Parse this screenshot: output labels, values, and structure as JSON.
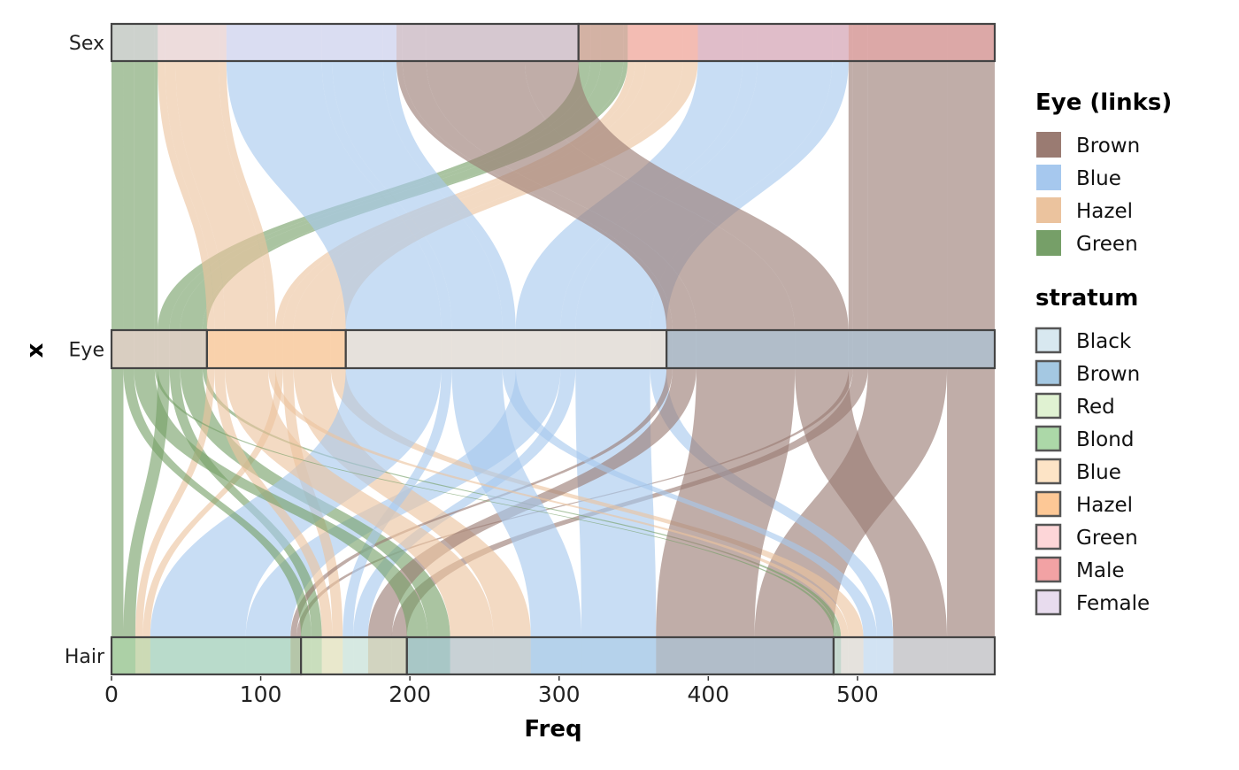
{
  "chart_data": {
    "type": "alluvial",
    "title": "",
    "xlabel": "Freq",
    "ylabel": "x",
    "xlim": [
      0,
      592
    ],
    "x_ticks": [
      "0",
      "100",
      "200",
      "300",
      "400",
      "500"
    ],
    "x_tick_values": [
      0,
      100,
      200,
      300,
      400,
      500
    ],
    "axes": [
      "Sex",
      "Eye",
      "Hair"
    ],
    "strata_order": {
      "Sex": [
        "Female",
        "Male"
      ],
      "Eye": [
        "Green",
        "Hazel",
        "Blue",
        "Brown"
      ],
      "Hair": [
        "Blond",
        "Red",
        "Brown",
        "Black"
      ]
    },
    "alluvia": [
      {
        "Hair": "Black",
        "Eye": "Brown",
        "Sex": "Male",
        "Freq": 32
      },
      {
        "Hair": "Brown",
        "Eye": "Brown",
        "Sex": "Male",
        "Freq": 53
      },
      {
        "Hair": "Red",
        "Eye": "Brown",
        "Sex": "Male",
        "Freq": 10
      },
      {
        "Hair": "Blond",
        "Eye": "Brown",
        "Sex": "Male",
        "Freq": 3
      },
      {
        "Hair": "Black",
        "Eye": "Blue",
        "Sex": "Male",
        "Freq": 11
      },
      {
        "Hair": "Brown",
        "Eye": "Blue",
        "Sex": "Male",
        "Freq": 50
      },
      {
        "Hair": "Red",
        "Eye": "Blue",
        "Sex": "Male",
        "Freq": 10
      },
      {
        "Hair": "Blond",
        "Eye": "Blue",
        "Sex": "Male",
        "Freq": 30
      },
      {
        "Hair": "Black",
        "Eye": "Hazel",
        "Sex": "Male",
        "Freq": 10
      },
      {
        "Hair": "Brown",
        "Eye": "Hazel",
        "Sex": "Male",
        "Freq": 25
      },
      {
        "Hair": "Red",
        "Eye": "Hazel",
        "Sex": "Male",
        "Freq": 7
      },
      {
        "Hair": "Blond",
        "Eye": "Hazel",
        "Sex": "Male",
        "Freq": 5
      },
      {
        "Hair": "Black",
        "Eye": "Green",
        "Sex": "Male",
        "Freq": 3
      },
      {
        "Hair": "Brown",
        "Eye": "Green",
        "Sex": "Male",
        "Freq": 15
      },
      {
        "Hair": "Red",
        "Eye": "Green",
        "Sex": "Male",
        "Freq": 7
      },
      {
        "Hair": "Blond",
        "Eye": "Green",
        "Sex": "Male",
        "Freq": 8
      },
      {
        "Hair": "Black",
        "Eye": "Brown",
        "Sex": "Female",
        "Freq": 36
      },
      {
        "Hair": "Brown",
        "Eye": "Brown",
        "Sex": "Female",
        "Freq": 66
      },
      {
        "Hair": "Red",
        "Eye": "Brown",
        "Sex": "Female",
        "Freq": 16
      },
      {
        "Hair": "Blond",
        "Eye": "Brown",
        "Sex": "Female",
        "Freq": 4
      },
      {
        "Hair": "Black",
        "Eye": "Blue",
        "Sex": "Female",
        "Freq": 9
      },
      {
        "Hair": "Brown",
        "Eye": "Blue",
        "Sex": "Female",
        "Freq": 34
      },
      {
        "Hair": "Red",
        "Eye": "Blue",
        "Sex": "Female",
        "Freq": 7
      },
      {
        "Hair": "Blond",
        "Eye": "Blue",
        "Sex": "Female",
        "Freq": 64
      },
      {
        "Hair": "Black",
        "Eye": "Hazel",
        "Sex": "Female",
        "Freq": 5
      },
      {
        "Hair": "Brown",
        "Eye": "Hazel",
        "Sex": "Female",
        "Freq": 29
      },
      {
        "Hair": "Red",
        "Eye": "Hazel",
        "Sex": "Female",
        "Freq": 7
      },
      {
        "Hair": "Blond",
        "Eye": "Hazel",
        "Sex": "Female",
        "Freq": 5
      },
      {
        "Hair": "Black",
        "Eye": "Green",
        "Sex": "Female",
        "Freq": 2
      },
      {
        "Hair": "Brown",
        "Eye": "Green",
        "Sex": "Female",
        "Freq": 14
      },
      {
        "Hair": "Red",
        "Eye": "Green",
        "Sex": "Female",
        "Freq": 7
      },
      {
        "Hair": "Blond",
        "Eye": "Green",
        "Sex": "Female",
        "Freq": 8
      }
    ],
    "legend_links": {
      "title": "Eye (links)",
      "items": [
        {
          "label": "Brown",
          "color": "#9a7b72"
        },
        {
          "label": "Blue",
          "color": "#a6c8ee"
        },
        {
          "label": "Hazel",
          "color": "#ebc39e"
        },
        {
          "label": "Green",
          "color": "#769f68"
        }
      ]
    },
    "legend_stratum": {
      "title": "stratum",
      "items": [
        {
          "label": "Black",
          "color": "#d8e8f0"
        },
        {
          "label": "Brown",
          "color": "#a4c8e2"
        },
        {
          "label": "Red",
          "color": "#e0f2d2"
        },
        {
          "label": "Blond",
          "color": "#acd8a8"
        },
        {
          "label": "Blue",
          "color": "#fde4c6"
        },
        {
          "label": "Hazel",
          "color": "#fdc896"
        },
        {
          "label": "Green",
          "color": "#fdd6d8"
        },
        {
          "label": "Male",
          "color": "#f2a2a4"
        },
        {
          "label": "Female",
          "color": "#e8dcee"
        }
      ]
    },
    "legend_position": "right"
  }
}
